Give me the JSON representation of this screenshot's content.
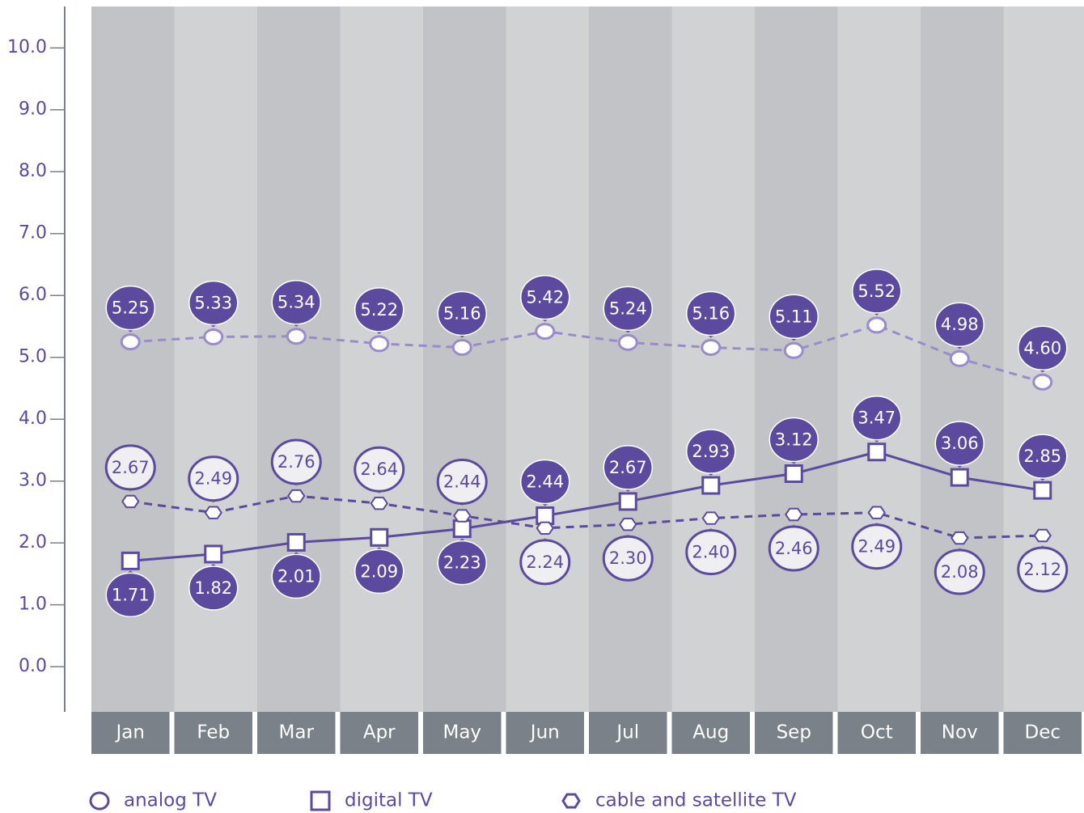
{
  "chart_data": {
    "type": "line",
    "categories": [
      "Jan",
      "Feb",
      "Mar",
      "Apr",
      "May",
      "Jun",
      "Jul",
      "Aug",
      "Sep",
      "Oct",
      "Nov",
      "Dec"
    ],
    "series": [
      {
        "name": "analog TV",
        "color": "#9a8bcb",
        "marker": "circle",
        "dashed": true,
        "values": [
          5.25,
          5.33,
          5.34,
          5.22,
          5.16,
          5.42,
          5.24,
          5.16,
          5.11,
          5.52,
          4.98,
          4.6
        ],
        "value_labels": [
          "5.25",
          "5.33",
          "5.34",
          "5.22",
          "5.16",
          "5.42",
          "5.24",
          "5.16",
          "5.11",
          "5.52",
          "4.98",
          "4.60"
        ]
      },
      {
        "name": "digital TV",
        "color": "#5c4a9f",
        "marker": "square",
        "dashed": false,
        "values": [
          1.71,
          1.82,
          2.01,
          2.09,
          2.23,
          2.44,
          2.67,
          2.93,
          3.12,
          3.47,
          3.06,
          2.85
        ],
        "value_labels": [
          "1.71",
          "1.82",
          "2.01",
          "2.09",
          "2.23",
          "2.44",
          "2.67",
          "2.93",
          "3.12",
          "3.47",
          "3.06",
          "2.85"
        ]
      },
      {
        "name": "cable and satellite TV",
        "color": "#5c4a9f",
        "marker": "hexagon",
        "dashed": true,
        "values": [
          2.67,
          2.49,
          2.76,
          2.64,
          2.44,
          2.24,
          2.3,
          2.4,
          2.46,
          2.49,
          2.08,
          2.12
        ],
        "value_labels": [
          "2.67",
          "2.49",
          "2.76",
          "2.64",
          "2.44",
          "2.24",
          "2.30",
          "2.40",
          "2.46",
          "2.49",
          "2.08",
          "2.12"
        ]
      }
    ],
    "ylim": [
      -0.73,
      10.67
    ],
    "yticks": [
      {
        "value": 0,
        "label": "0.0"
      },
      {
        "value": 1,
        "label": "1.0"
      },
      {
        "value": 2,
        "label": "2.0"
      },
      {
        "value": 3,
        "label": "3.0"
      },
      {
        "value": 4,
        "label": "4.0"
      },
      {
        "value": 5,
        "label": "5.0"
      },
      {
        "value": 6,
        "label": "6.0"
      },
      {
        "value": 7,
        "label": "7.0"
      },
      {
        "value": 8,
        "label": "8.0"
      },
      {
        "value": 9,
        "label": "9.0"
      },
      {
        "value": 10,
        "label": "10.0"
      }
    ]
  }
}
